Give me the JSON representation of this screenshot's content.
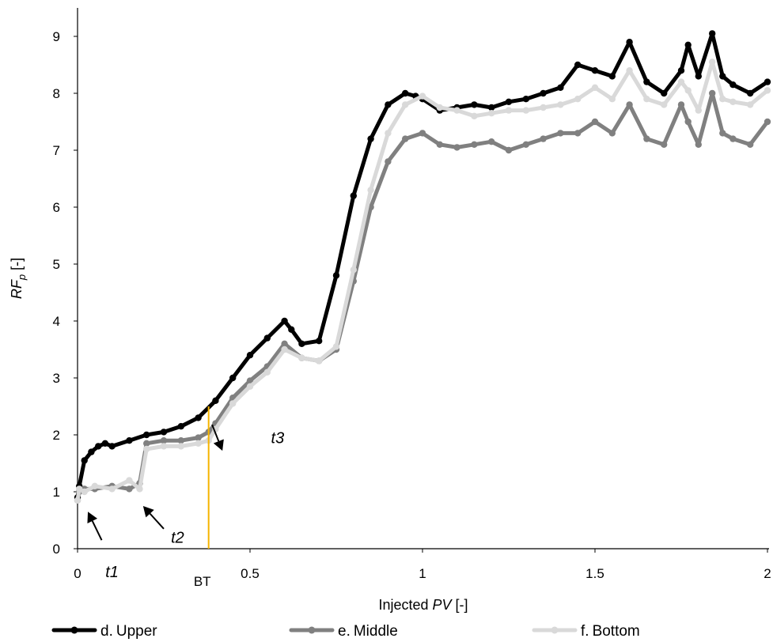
{
  "chart_data": {
    "type": "line",
    "title": "",
    "xlabel_pre": "Injected ",
    "xlabel_it": "PV",
    "xlabel_post": " [-]",
    "ylabel_main": "RF",
    "ylabel_sub": "p",
    "ylabel_post": " [-]",
    "xlim": [
      0,
      2
    ],
    "ylim": [
      0,
      9.5
    ],
    "xticks": [
      "0",
      "0.5",
      "1",
      "1.5",
      "2"
    ],
    "xtick_values": [
      0,
      0.5,
      1,
      1.5,
      2
    ],
    "yticks": [
      "0",
      "1",
      "2",
      "3",
      "4",
      "5",
      "6",
      "7",
      "8",
      "9"
    ],
    "ytick_values": [
      0,
      1,
      2,
      3,
      4,
      5,
      6,
      7,
      8,
      9
    ],
    "grid": false,
    "legend_position": "bottom",
    "series": [
      {
        "name": "d. Upper",
        "legend_prefix": "d.",
        "legend_label": "Upper",
        "color": "#000000",
        "x": [
          0,
          0.005,
          0.02,
          0.04,
          0.06,
          0.08,
          0.1,
          0.15,
          0.2,
          0.25,
          0.3,
          0.35,
          0.4,
          0.45,
          0.5,
          0.55,
          0.6,
          0.62,
          0.65,
          0.7,
          0.75,
          0.8,
          0.85,
          0.9,
          0.95,
          0.98,
          1.0,
          1.05,
          1.1,
          1.15,
          1.2,
          1.25,
          1.3,
          1.35,
          1.4,
          1.45,
          1.5,
          1.55,
          1.6,
          1.65,
          1.7,
          1.75,
          1.77,
          1.8,
          1.84,
          1.87,
          1.9,
          1.95,
          2.0
        ],
        "y": [
          0.9,
          1.1,
          1.55,
          1.7,
          1.8,
          1.85,
          1.8,
          1.9,
          2.0,
          2.05,
          2.15,
          2.3,
          2.6,
          3.0,
          3.4,
          3.7,
          4.0,
          3.85,
          3.6,
          3.65,
          4.8,
          6.2,
          7.2,
          7.8,
          8.0,
          7.95,
          7.9,
          7.7,
          7.75,
          7.8,
          7.75,
          7.85,
          7.9,
          8.0,
          8.1,
          8.5,
          8.4,
          8.3,
          8.9,
          8.2,
          8.0,
          8.4,
          8.85,
          8.3,
          9.05,
          8.3,
          8.15,
          8.0,
          8.2
        ]
      },
      {
        "name": "e. Middle",
        "legend_prefix": "e.",
        "legend_label": "Middle",
        "color": "#808080",
        "x": [
          0,
          0.005,
          0.02,
          0.05,
          0.1,
          0.15,
          0.18,
          0.2,
          0.25,
          0.3,
          0.35,
          0.38,
          0.4,
          0.45,
          0.5,
          0.55,
          0.6,
          0.65,
          0.7,
          0.75,
          0.8,
          0.85,
          0.9,
          0.95,
          1.0,
          1.05,
          1.1,
          1.15,
          1.2,
          1.25,
          1.3,
          1.35,
          1.4,
          1.45,
          1.5,
          1.55,
          1.6,
          1.65,
          1.7,
          1.75,
          1.77,
          1.8,
          1.84,
          1.87,
          1.9,
          1.95,
          2.0
        ],
        "y": [
          0.85,
          1.0,
          1.05,
          1.05,
          1.1,
          1.05,
          1.15,
          1.85,
          1.9,
          1.9,
          1.95,
          2.05,
          2.2,
          2.65,
          2.95,
          3.2,
          3.6,
          3.35,
          3.3,
          3.5,
          4.7,
          6.0,
          6.8,
          7.2,
          7.3,
          7.1,
          7.05,
          7.1,
          7.15,
          7.0,
          7.1,
          7.2,
          7.3,
          7.3,
          7.5,
          7.3,
          7.8,
          7.2,
          7.1,
          7.8,
          7.5,
          7.1,
          8.0,
          7.3,
          7.2,
          7.1,
          7.5
        ]
      },
      {
        "name": "f. Bottom",
        "legend_prefix": "f.",
        "legend_label": "Bottom",
        "color": "#d9d9d9",
        "x": [
          0,
          0.005,
          0.02,
          0.05,
          0.1,
          0.15,
          0.18,
          0.2,
          0.25,
          0.3,
          0.35,
          0.38,
          0.4,
          0.45,
          0.5,
          0.55,
          0.6,
          0.65,
          0.7,
          0.75,
          0.8,
          0.85,
          0.9,
          0.95,
          1.0,
          1.05,
          1.1,
          1.15,
          1.2,
          1.25,
          1.3,
          1.35,
          1.4,
          1.45,
          1.5,
          1.55,
          1.6,
          1.65,
          1.7,
          1.75,
          1.77,
          1.8,
          1.84,
          1.87,
          1.9,
          1.95,
          2.0
        ],
        "y": [
          0.85,
          1.05,
          1.0,
          1.1,
          1.05,
          1.2,
          1.05,
          1.75,
          1.8,
          1.8,
          1.85,
          1.9,
          2.1,
          2.55,
          2.85,
          3.1,
          3.5,
          3.35,
          3.3,
          3.55,
          4.9,
          6.3,
          7.3,
          7.8,
          7.95,
          7.75,
          7.7,
          7.6,
          7.65,
          7.7,
          7.7,
          7.75,
          7.8,
          7.9,
          8.1,
          7.9,
          8.4,
          7.9,
          7.8,
          8.2,
          8.05,
          7.7,
          8.55,
          7.9,
          7.85,
          7.8,
          8.05
        ]
      }
    ],
    "bt_line": {
      "x": 0.38,
      "y_top": 2.5,
      "label": "BT",
      "color": "#f5b400"
    },
    "annotations": [
      {
        "text": "t1",
        "arrow_from": [
          0.07,
          0.15
        ],
        "arrow_to": [
          0.03,
          0.65
        ],
        "text_at": [
          0.1,
          -0.4
        ]
      },
      {
        "text": "t2",
        "arrow_from": [
          0.25,
          0.35
        ],
        "arrow_to": [
          0.19,
          0.75
        ],
        "text_at": [
          0.29,
          0.2
        ]
      },
      {
        "text": "t3",
        "arrow_from": [
          0.39,
          2.18
        ],
        "arrow_to": [
          0.42,
          1.72
        ],
        "text_at": [
          0.58,
          1.95
        ]
      }
    ]
  }
}
